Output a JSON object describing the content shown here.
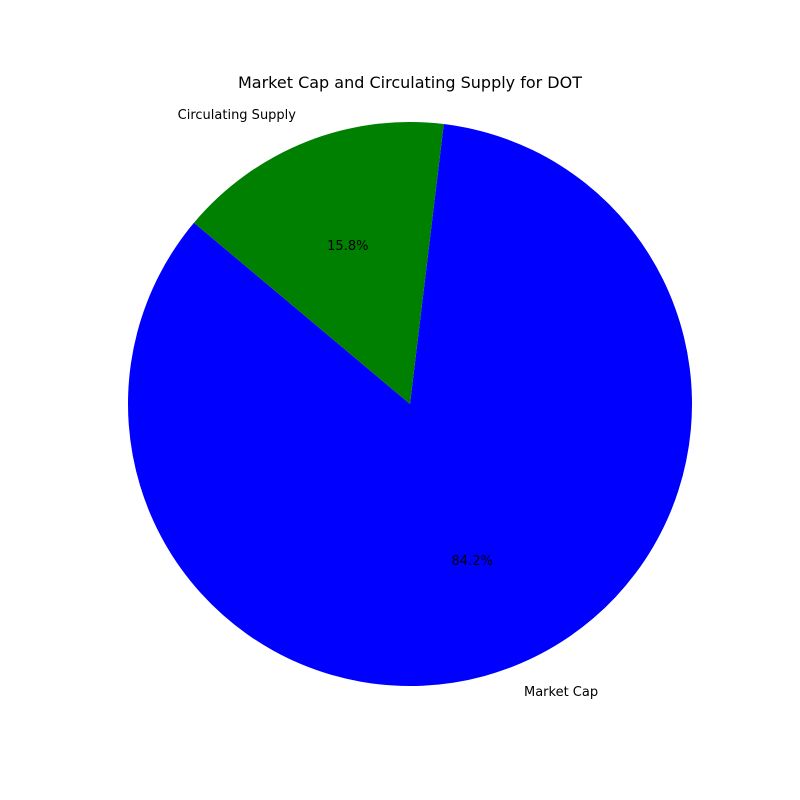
{
  "chart_data": {
    "type": "pie",
    "title": "Market Cap and Circulating Supply for DOT",
    "categories": [
      "Market Cap",
      "Circulating Supply"
    ],
    "values": [
      84.2,
      15.8
    ],
    "value_labels": [
      "84.2%",
      "15.8%"
    ],
    "colors": [
      "#0000ff",
      "#008000"
    ],
    "start_angle_deg": 140,
    "direction": "counterclockwise",
    "legend": "none"
  }
}
